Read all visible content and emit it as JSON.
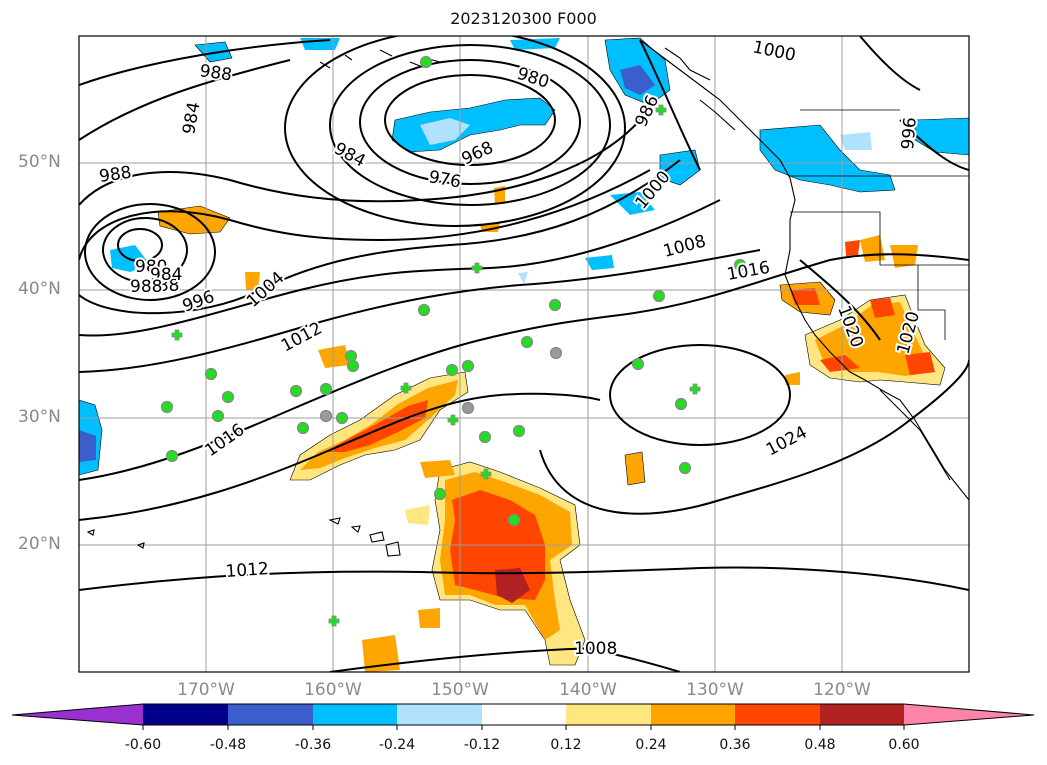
{
  "title": "2023120300 F000",
  "lat_labels": [
    "20°N",
    "30°N",
    "40°N",
    "50°N"
  ],
  "lon_labels": [
    "170°W",
    "160°W",
    "150°W",
    "140°W",
    "130°W",
    "120°W"
  ],
  "contour_labels": [
    "988",
    "988",
    "984",
    "980",
    "968",
    "976",
    "984",
    "988",
    "980",
    "984",
    "988",
    "996",
    "1004",
    "1012",
    "1008",
    "1000",
    "1016",
    "1016",
    "1024",
    "1020",
    "1020",
    "1012",
    "1008",
    "1000",
    "986",
    "996"
  ],
  "colorbar": {
    "tick_labels": [
      "-0.60",
      "-0.48",
      "-0.36",
      "-0.24",
      "-0.12",
      "0.12",
      "0.24",
      "0.36",
      "0.48",
      "0.60"
    ],
    "colors": [
      "#9b30d0",
      "#00008b",
      "#3a5fcd",
      "#00bfff",
      "#b0e2ff",
      "#ffffff",
      "#ffe680",
      "#ffa500",
      "#ff4500",
      "#b22222",
      "#ff85a8"
    ]
  },
  "legend": {
    "station_dot_color": "#22dd22",
    "station_cross_color": "#22dd22"
  }
}
